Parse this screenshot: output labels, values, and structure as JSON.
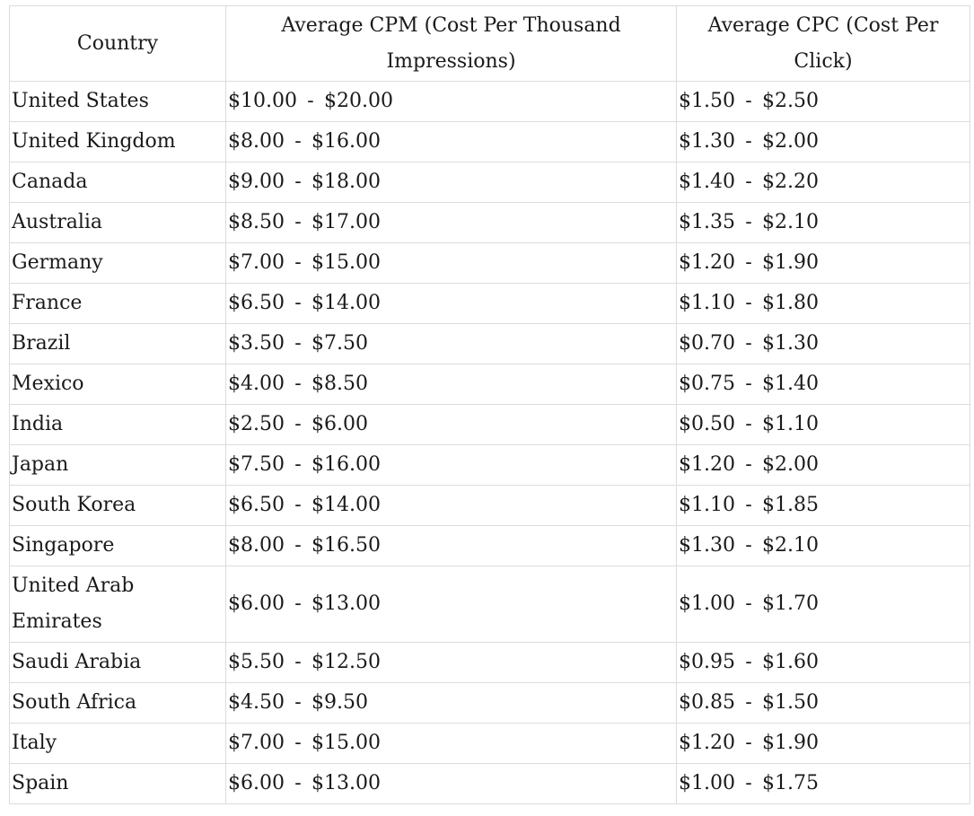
{
  "table": {
    "headers": {
      "country": "Country",
      "cpm": "Average CPM (Cost Per Thousand Impressions)",
      "cpc": "Average CPC (Cost Per Click)"
    },
    "separator": "-",
    "rows": [
      {
        "country": "United States",
        "cpm_low": "$10.00",
        "cpm_high": "$20.00",
        "cpc_low": "$1.50",
        "cpc_high": "$2.50"
      },
      {
        "country": "United Kingdom",
        "cpm_low": "$8.00",
        "cpm_high": "$16.00",
        "cpc_low": "$1.30",
        "cpc_high": "$2.00"
      },
      {
        "country": "Canada",
        "cpm_low": "$9.00",
        "cpm_high": "$18.00",
        "cpc_low": "$1.40",
        "cpc_high": "$2.20"
      },
      {
        "country": "Australia",
        "cpm_low": "$8.50",
        "cpm_high": "$17.00",
        "cpc_low": "$1.35",
        "cpc_high": "$2.10"
      },
      {
        "country": "Germany",
        "cpm_low": "$7.00",
        "cpm_high": "$15.00",
        "cpc_low": "$1.20",
        "cpc_high": "$1.90"
      },
      {
        "country": "France",
        "cpm_low": "$6.50",
        "cpm_high": "$14.00",
        "cpc_low": "$1.10",
        "cpc_high": "$1.80"
      },
      {
        "country": "Brazil",
        "cpm_low": "$3.50",
        "cpm_high": "$7.50",
        "cpc_low": "$0.70",
        "cpc_high": "$1.30"
      },
      {
        "country": "Mexico",
        "cpm_low": "$4.00",
        "cpm_high": "$8.50",
        "cpc_low": "$0.75",
        "cpc_high": "$1.40"
      },
      {
        "country": "India",
        "cpm_low": "$2.50",
        "cpm_high": "$6.00",
        "cpc_low": "$0.50",
        "cpc_high": "$1.10"
      },
      {
        "country": "Japan",
        "cpm_low": "$7.50",
        "cpm_high": "$16.00",
        "cpc_low": "$1.20",
        "cpc_high": "$2.00"
      },
      {
        "country": "South Korea",
        "cpm_low": "$6.50",
        "cpm_high": "$14.00",
        "cpc_low": "$1.10",
        "cpc_high": "$1.85"
      },
      {
        "country": "Singapore",
        "cpm_low": "$8.00",
        "cpm_high": "$16.50",
        "cpc_low": "$1.30",
        "cpc_high": "$2.10"
      },
      {
        "country": "United Arab Emirates",
        "cpm_low": "$6.00",
        "cpm_high": "$13.00",
        "cpc_low": "$1.00",
        "cpc_high": "$1.70"
      },
      {
        "country": "Saudi Arabia",
        "cpm_low": "$5.50",
        "cpm_high": "$12.50",
        "cpc_low": "$0.95",
        "cpc_high": "$1.60"
      },
      {
        "country": "South Africa",
        "cpm_low": "$4.50",
        "cpm_high": "$9.50",
        "cpc_low": "$0.85",
        "cpc_high": "$1.50"
      },
      {
        "country": "Italy",
        "cpm_low": "$7.00",
        "cpm_high": "$15.00",
        "cpc_low": "$1.20",
        "cpc_high": "$1.90"
      },
      {
        "country": "Spain",
        "cpm_low": "$6.00",
        "cpm_high": "$13.00",
        "cpc_low": "$1.00",
        "cpc_high": "$1.75"
      }
    ]
  }
}
